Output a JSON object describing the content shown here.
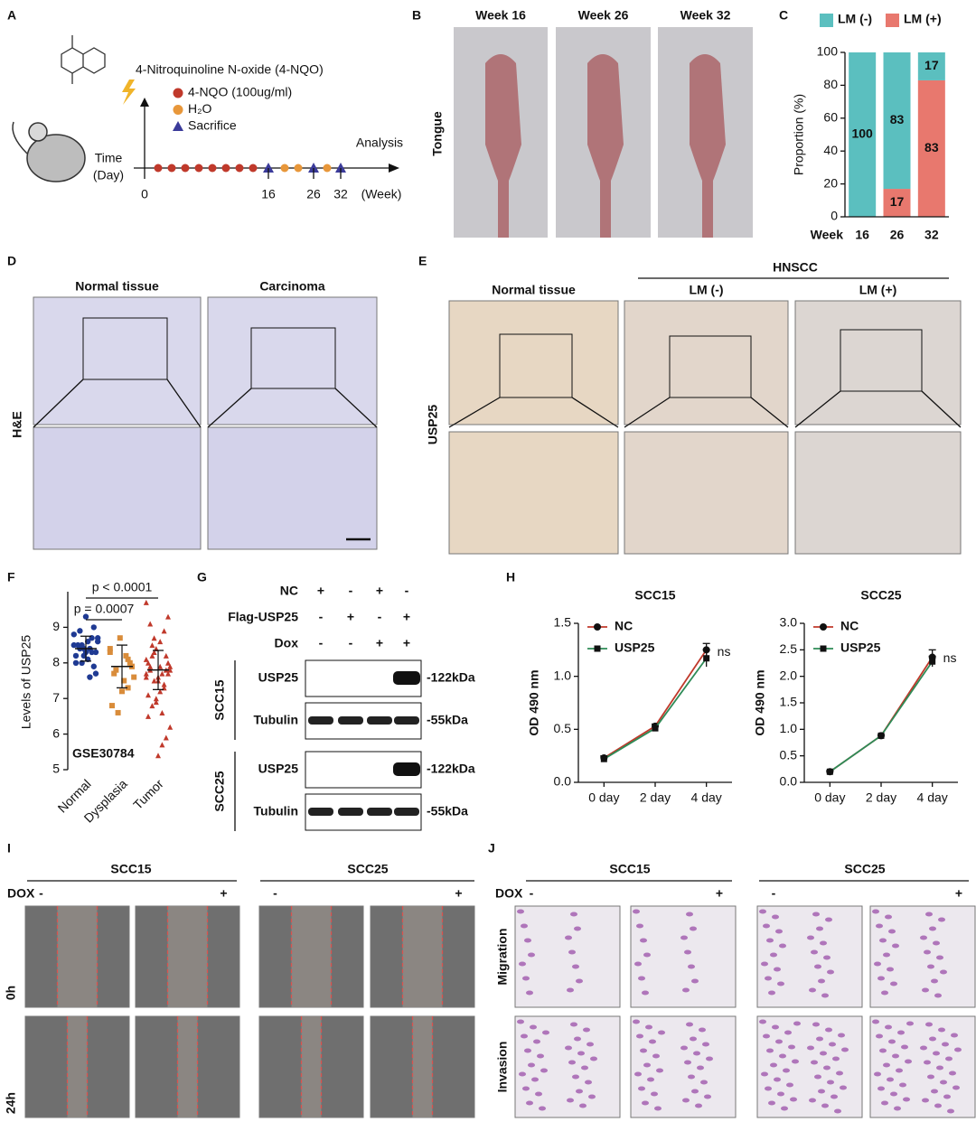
{
  "panel_labels": [
    "A",
    "B",
    "C",
    "D",
    "E",
    "F",
    "G",
    "H",
    "I",
    "J"
  ],
  "a": {
    "compound": "4-Nitroquinoline N-oxide (4-NQO)",
    "legend": [
      "4-NQO (100ug/ml)",
      "H₂O",
      "Sacrifice"
    ],
    "time": [
      "Time",
      "(Day)"
    ],
    "analysis": "Analysis",
    "ticks": [
      "0",
      "16",
      "26",
      "32"
    ],
    "unit": "(Week)"
  },
  "b": {
    "weeks": [
      "Week 16",
      "Week 26",
      "Week 32"
    ],
    "tissue": "Tongue"
  },
  "d": {
    "columns": [
      "Normal tissue",
      "Carcinoma"
    ],
    "row": "H&E"
  },
  "e": {
    "group": "HNSCC",
    "columns": [
      "Normal tissue",
      "LM (-)",
      "LM (+)"
    ],
    "row": "USP25"
  },
  "g": {
    "rows": [
      {
        "label": "NC",
        "signs": [
          "+",
          "-",
          "+",
          "-"
        ]
      },
      {
        "label": "Flag-USP25",
        "signs": [
          "-",
          "+",
          "-",
          "+"
        ]
      },
      {
        "label": "Dox",
        "signs": [
          "-",
          "-",
          "+",
          "+"
        ]
      }
    ],
    "blots": [
      {
        "cell": "SCC15",
        "proteins": [
          {
            "name": "USP25",
            "size": "-122kDa"
          },
          {
            "name": "Tubulin",
            "size": "-55kDa"
          }
        ]
      },
      {
        "cell": "SCC25",
        "proteins": [
          {
            "name": "USP25",
            "size": "-122kDa"
          },
          {
            "name": "Tubulin",
            "size": "-55kDa"
          }
        ]
      }
    ]
  },
  "i": {
    "cells": [
      "SCC15",
      "SCC25"
    ],
    "treatment": "DOX",
    "signs": [
      "-",
      "+",
      "-",
      "+"
    ],
    "rows": [
      "0h",
      "24h"
    ]
  },
  "j": {
    "cells": [
      "SCC15",
      "SCC25"
    ],
    "treatment": "DOX",
    "signs": [
      "-",
      "+",
      "-",
      "+"
    ],
    "rows": [
      "Migration",
      "Invasion"
    ]
  },
  "chart_data": [
    {
      "type": "stacked-bar",
      "x_label": "Week",
      "y_label": "Proportion (%)",
      "categories": [
        "16",
        "26",
        "32"
      ],
      "series": [
        {
          "name": "LM (-)",
          "color": "#5bbfbf",
          "values": [
            100,
            83,
            17
          ]
        },
        {
          "name": "LM (+)",
          "color": "#e8786e",
          "values": [
            0,
            17,
            83
          ]
        }
      ],
      "ylim": [
        0,
        100
      ],
      "yticks": [
        0,
        20,
        40,
        60,
        80,
        100
      ],
      "legend": "top"
    },
    {
      "type": "dot-plot",
      "y_label": "Levels of USP25",
      "annotation": "GSE30784",
      "categories": [
        "Normal",
        "Dysplasia",
        "Tumor"
      ],
      "groups": [
        {
          "color": "#1f3a93",
          "values": [
            8.5,
            8.3,
            8.7,
            8.1,
            8.4,
            8.9,
            8.2,
            8.6,
            7.9,
            8.4,
            9.3,
            8.0,
            8.5,
            8.8,
            7.7,
            8.3,
            8.6,
            8.2,
            8.4,
            8.0,
            8.7,
            9.0,
            7.6,
            8.3,
            8.5
          ]
        },
        {
          "color": "#d98c3a",
          "values": [
            8.3,
            7.9,
            8.1,
            7.5,
            8.7,
            7.8,
            6.8,
            7.6,
            8.0,
            8.2,
            7.2,
            6.6,
            7.7,
            8.4,
            7.9,
            7.3
          ]
        },
        {
          "color": "#c0392b",
          "values": [
            9.7,
            9.3,
            8.9,
            8.6,
            8.4,
            8.2,
            8.0,
            7.9,
            7.8,
            7.7,
            7.6,
            7.5,
            7.9,
            8.1,
            7.7,
            7.4,
            7.2,
            7.0,
            6.8,
            6.5,
            6.2,
            5.9,
            5.7,
            5.4,
            8.3,
            7.8,
            7.6,
            8.0,
            7.3,
            7.9,
            6.9,
            8.5,
            7.1,
            7.8,
            8.2,
            6.6,
            7.5,
            8.7,
            9.1,
            7.7
          ]
        }
      ],
      "means": [
        8.4,
        7.9,
        7.8
      ],
      "sds": [
        0.35,
        0.6,
        0.55
      ],
      "comparisons": [
        "p < 0.0001",
        "p = 0.0007"
      ],
      "ylim": [
        5,
        10
      ],
      "yticks": [
        5,
        6,
        7,
        8,
        9
      ]
    },
    {
      "type": "line",
      "title": "SCC15",
      "y_label": "OD 490 nm",
      "categories": [
        "0 day",
        "2 day",
        "4 day"
      ],
      "annotation": "ns",
      "series": [
        {
          "name": "NC",
          "color": "#c0392b",
          "marker": "circle",
          "values": [
            0.23,
            0.53,
            1.25
          ],
          "errors": [
            0.02,
            0.02,
            0.06
          ]
        },
        {
          "name": "USP25",
          "color": "#2e8b57",
          "marker": "square",
          "values": [
            0.22,
            0.51,
            1.17
          ],
          "errors": [
            0.02,
            0.02,
            0.08
          ]
        }
      ],
      "ylim": [
        0,
        1.5
      ],
      "yticks": [
        {
          "value": 0,
          "label": "0.0"
        },
        0.5,
        {
          "value": 1,
          "label": "1.0"
        },
        1.5
      ]
    },
    {
      "type": "line",
      "title": "SCC25",
      "y_label": "OD 490 nm",
      "categories": [
        "0 day",
        "2 day",
        "4 day"
      ],
      "annotation": "ns",
      "series": [
        {
          "name": "NC",
          "color": "#c0392b",
          "marker": "circle",
          "values": [
            0.2,
            0.88,
            2.36
          ],
          "errors": [
            0.02,
            0.02,
            0.14
          ]
        },
        {
          "name": "USP25",
          "color": "#2e8b57",
          "marker": "square",
          "values": [
            0.2,
            0.88,
            2.28
          ],
          "errors": [
            0.02,
            0.02,
            0.1
          ]
        }
      ],
      "ylim": [
        0,
        3
      ],
      "yticks": [
        {
          "value": 0,
          "label": "0.0"
        },
        0.5,
        {
          "value": 1,
          "label": "1.0"
        },
        1.5,
        {
          "value": 2,
          "label": "2.0"
        },
        2.5,
        {
          "value": 3,
          "label": "3.0"
        }
      ]
    }
  ]
}
